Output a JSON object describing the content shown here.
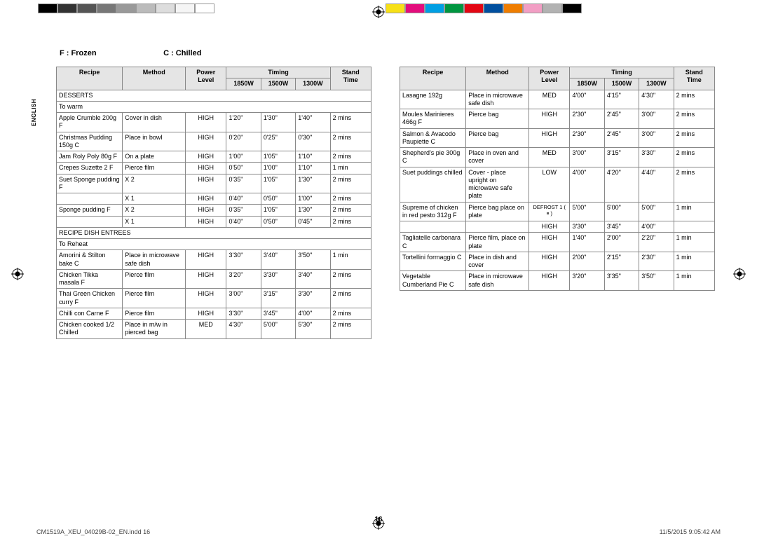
{
  "colorbars": {
    "left": [
      "#000000",
      "#333333",
      "#555555",
      "#777777",
      "#999999",
      "#bbbbbb",
      "#dddddd",
      "#f5f5f5",
      "#ffffff"
    ],
    "right": [
      "#f7e017",
      "#e30d7c",
      "#009fe3",
      "#009640",
      "#e30613",
      "#004f9f",
      "#ef7d00",
      "#f29ec4",
      "#b2b2b2",
      "#000000"
    ]
  },
  "legend": {
    "f": "F : Frozen",
    "c": "C : Chilled"
  },
  "sidelabel": "ENGLISH",
  "headers": {
    "recipe": "Recipe",
    "method": "Method",
    "power": "Power Level",
    "timing": "Timing",
    "t1850": "1850W",
    "t1500": "1500W",
    "t1300": "1300W",
    "stand": "Stand Time"
  },
  "leftTable": [
    {
      "type": "section",
      "recipe": "DESSERTS"
    },
    {
      "type": "section",
      "recipe": "To warm"
    },
    {
      "recipe": "Apple Crumble 200g F",
      "method": "Cover in dish",
      "power": "HIGH",
      "t1": "1'20\"",
      "t2": "1'30\"",
      "t3": "1'40\"",
      "stand": "2 mins"
    },
    {
      "recipe": "Christmas Pudding 150g C",
      "method": "Place in bowl",
      "power": "HIGH",
      "t1": "0'20\"",
      "t2": "0'25\"",
      "t3": "0'30\"",
      "stand": "2 mins"
    },
    {
      "recipe": "Jam Roly Poly 80g F",
      "method": "On a plate",
      "power": "HIGH",
      "t1": "1'00\"",
      "t2": "1'05\"",
      "t3": "1'10\"",
      "stand": "2 mins"
    },
    {
      "recipe": "Crepes Suzette 2 F",
      "method": "Pierce film",
      "power": "HIGH",
      "t1": "0'50\"",
      "t2": "1'00\"",
      "t3": "1'10\"",
      "stand": "1 min"
    },
    {
      "recipe": "Suet Sponge pudding F",
      "method": "X 2",
      "power": "HIGH",
      "t1": "0'35\"",
      "t2": "1'05\"",
      "t3": "1'30\"",
      "stand": "2 mins",
      "noBottom": true
    },
    {
      "recipe": "",
      "method": "X 1",
      "power": "HIGH",
      "t1": "0'40\"",
      "t2": "0'50\"",
      "t3": "1'00\"",
      "stand": "2 mins"
    },
    {
      "recipe": "Sponge pudding F",
      "method": "X 2",
      "power": "HIGH",
      "t1": "0'35\"",
      "t2": "1'05\"",
      "t3": "1'30\"",
      "stand": "2 mins",
      "noBottom": true
    },
    {
      "recipe": "",
      "method": "X 1",
      "power": "HIGH",
      "t1": "0'40\"",
      "t2": "0'50\"",
      "t3": "0'45\"",
      "stand": "2 mins"
    },
    {
      "type": "section",
      "recipe": "RECIPE DISH ENTREES"
    },
    {
      "type": "section",
      "recipe": "To Reheat"
    },
    {
      "recipe": "Amorini & Stilton bake C",
      "method": "Place in microwave safe dish",
      "power": "HIGH",
      "t1": "3'30\"",
      "t2": "3'40\"",
      "t3": "3'50\"",
      "stand": "1 min"
    },
    {
      "recipe": "Chicken Tikka masala F",
      "method": "Pierce film",
      "power": "HIGH",
      "t1": "3'20\"",
      "t2": "3'30\"",
      "t3": "3'40\"",
      "stand": "2 mins"
    },
    {
      "recipe": "Thai Green Chicken curry F",
      "method": "Pierce film",
      "power": "HIGH",
      "t1": "3'00\"",
      "t2": "3'15\"",
      "t3": "3'30\"",
      "stand": "2 mins"
    },
    {
      "recipe": "Chilli con Carne F",
      "method": "Pierce film",
      "power": "HIGH",
      "t1": "3'30\"",
      "t2": "3'45\"",
      "t3": "4'00\"",
      "stand": "2 mins"
    },
    {
      "recipe": "Chicken cooked 1/2 Chilled",
      "method": "Place in m/w in pierced bag",
      "power": "MED",
      "t1": "4'30\"",
      "t2": "5'00\"",
      "t3": "5'30\"",
      "stand": "2 mins"
    }
  ],
  "rightTable": [
    {
      "recipe": "Lasagne 192g",
      "method": "Place in microwave safe dish",
      "power": "MED",
      "t1": "4'00\"",
      "t2": "4'15\"",
      "t3": "4'30\"",
      "stand": "2 mins"
    },
    {
      "recipe": "Moules Marinieres 466g F",
      "method": "Pierce bag",
      "power": "HIGH",
      "t1": "2'30\"",
      "t2": "2'45\"",
      "t3": "3'00\"",
      "stand": "2 mins"
    },
    {
      "recipe": "Salmon & Avacodo Paupiette C",
      "method": "Pierce bag",
      "power": "HIGH",
      "t1": "2'30\"",
      "t2": "2'45\"",
      "t3": "3'00\"",
      "stand": "2 mins"
    },
    {
      "recipe": "Shepherd's pie 300g C",
      "method": "Place in oven and cover",
      "power": "MED",
      "t1": "3'00\"",
      "t2": "3'15\"",
      "t3": "3'30\"",
      "stand": "2 mins"
    },
    {
      "recipe": "Suet puddings chilled",
      "method": "Cover - place upright on microwave safe plate",
      "power": "LOW",
      "t1": "4'00\"",
      "t2": "4'20\"",
      "t3": "4'40\"",
      "stand": "2 mins"
    },
    {
      "recipe": "Supreme of chicken in red pesto 312g F",
      "method": "Pierce bag place on plate",
      "power": "DEFROST 1 ( ⏸ )",
      "t1": "5'00\"",
      "t2": "5'00\"",
      "t3": "5'00\"",
      "stand": "1 min",
      "noBottom": true,
      "powerSmall": true
    },
    {
      "recipe": "",
      "method": "",
      "power": "HIGH",
      "t1": "3'30\"",
      "t2": "3'45\"",
      "t3": "4'00\"",
      "stand": ""
    },
    {
      "recipe": "Tagliatelle carbonara C",
      "method": "Pierce film, place on plate",
      "power": "HIGH",
      "t1": "1'40\"",
      "t2": "2'00\"",
      "t3": "2'20\"",
      "stand": "1 min"
    },
    {
      "recipe": "Tortellini formaggio C",
      "method": "Place in dish and cover",
      "power": "HIGH",
      "t1": "2'00\"",
      "t2": "2'15\"",
      "t3": "2'30\"",
      "stand": "1 min"
    },
    {
      "recipe": "Vegetable Cumberland Pie C",
      "method": "Place in microwave safe dish",
      "power": "HIGH",
      "t1": "3'20\"",
      "t2": "3'35\"",
      "t3": "3'50\"",
      "stand": "1 min"
    }
  ],
  "pagenum": "16",
  "footer": {
    "left": "CM1519A_XEU_04029B-02_EN.indd   16",
    "right": "11/5/2015   9:05:42 AM"
  },
  "colwidths": {
    "recipe": "21%",
    "method": "20%",
    "power": "13%",
    "t": "11%",
    "stand": "13%"
  }
}
